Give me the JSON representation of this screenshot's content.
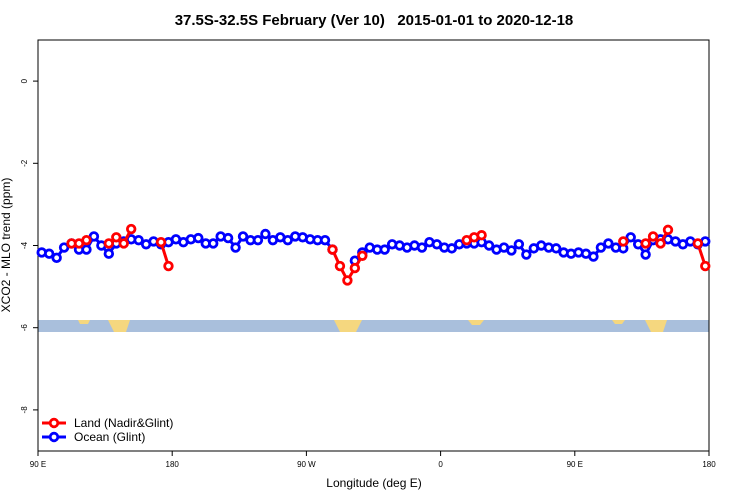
{
  "chart_data": {
    "type": "line",
    "title": "37.5S-32.5S February (Ver 10)   2015-01-01 to 2020-12-18",
    "x_label": "Longitude (deg E)",
    "y_label": "XCO2 - MLO trend (ppm)",
    "x": [
      92.5,
      97.5,
      102.5,
      107.5,
      112.5,
      117.5,
      122.5,
      127.5,
      132.5,
      137.5,
      142.5,
      147.5,
      152.5,
      157.5,
      162.5,
      167.5,
      172.5,
      177.5,
      182.5,
      187.5,
      192.5,
      197.5,
      202.5,
      207.5,
      212.5,
      217.5,
      222.5,
      227.5,
      232.5,
      237.5,
      242.5,
      247.5,
      252.5,
      257.5,
      262.5,
      267.5,
      272.5,
      277.5,
      282.5,
      287.5,
      292.5,
      297.5,
      302.5,
      307.5,
      312.5,
      317.5,
      322.5,
      327.5,
      332.5,
      337.5,
      342.5,
      347.5,
      352.5,
      357.5,
      362.5,
      367.5,
      372.5,
      377.5,
      382.5,
      387.5,
      392.5,
      397.5,
      402.5,
      407.5,
      412.5,
      417.5,
      422.5,
      427.5,
      432.5,
      437.5,
      442.5,
      447.5,
      452.5,
      457.5,
      462.5,
      467.5,
      472.5,
      477.5,
      482.5,
      487.5,
      492.5,
      497.5,
      502.5,
      507.5,
      512.5,
      517.5,
      522.5,
      527.5,
      532.5,
      537.5
    ],
    "series": [
      {
        "name": "Ocean (Glint)",
        "color": "#0000ff",
        "values": [
          -4.17,
          -4.2,
          -4.3,
          -4.05,
          -3.95,
          -4.1,
          -4.1,
          -3.78,
          -4.0,
          -4.2,
          -3.95,
          -3.9,
          -3.85,
          -3.87,
          -3.97,
          -3.9,
          -3.97,
          -3.92,
          -3.85,
          -3.92,
          -3.85,
          -3.82,
          -3.95,
          -3.95,
          -3.78,
          -3.82,
          -4.05,
          -3.78,
          -3.87,
          -3.87,
          -3.72,
          -3.87,
          -3.8,
          -3.87,
          -3.78,
          -3.8,
          -3.85,
          -3.87,
          -3.87,
          -4.1,
          null,
          null,
          -4.37,
          -4.17,
          -4.05,
          -4.1,
          -4.1,
          -3.97,
          -4.0,
          -4.05,
          -4.0,
          -4.05,
          -3.92,
          -3.97,
          -4.05,
          -4.07,
          -3.97,
          -3.95,
          -3.95,
          -3.92,
          -4.0,
          -4.1,
          -4.05,
          -4.12,
          -3.97,
          -4.22,
          -4.07,
          -4.0,
          -4.05,
          -4.07,
          -4.17,
          -4.2,
          -4.17,
          -4.2,
          -4.27,
          -4.05,
          -3.95,
          -4.05,
          -4.07,
          -3.8,
          -3.97,
          -4.22,
          -3.87,
          -3.85,
          -3.85,
          -3.9,
          -3.97,
          -3.9,
          -3.97,
          -3.9
        ]
      },
      {
        "name": "Land (Nadir&Glint)",
        "color": "#ff0000",
        "values": [
          null,
          null,
          null,
          null,
          -3.95,
          -3.95,
          -3.87,
          null,
          null,
          -3.95,
          -3.8,
          -3.95,
          -3.6,
          null,
          null,
          null,
          -3.92,
          -4.5,
          null,
          null,
          null,
          null,
          null,
          null,
          null,
          null,
          null,
          null,
          null,
          null,
          null,
          null,
          null,
          null,
          null,
          null,
          null,
          null,
          null,
          -4.1,
          -4.5,
          -4.85,
          -4.55,
          -4.25,
          null,
          null,
          null,
          null,
          null,
          null,
          null,
          null,
          null,
          null,
          null,
          null,
          null,
          -3.87,
          -3.8,
          -3.75,
          null,
          null,
          null,
          null,
          null,
          null,
          null,
          null,
          null,
          null,
          null,
          null,
          null,
          null,
          null,
          null,
          null,
          null,
          -3.9,
          null,
          null,
          -3.95,
          -3.78,
          -3.95,
          -3.62,
          null,
          null,
          null,
          -3.95,
          -4.5
        ]
      }
    ],
    "legend_order": [
      "Land (Nadir&Glint)",
      "Ocean (Glint)"
    ],
    "legend": "bottom-left",
    "xlim": [
      90,
      540
    ],
    "xticks": [
      {
        "value": 90,
        "label": "90 E"
      },
      180,
      {
        "value": 270,
        "label": "90 W"
      },
      {
        "value": 360,
        "label": "0"
      },
      {
        "value": 450,
        "label": "90 E"
      },
      {
        "value": 540,
        "label": "180"
      }
    ],
    "ylim": [
      -9,
      1
    ],
    "yticks": [
      0,
      -2,
      -4,
      -6,
      -8
    ]
  }
}
